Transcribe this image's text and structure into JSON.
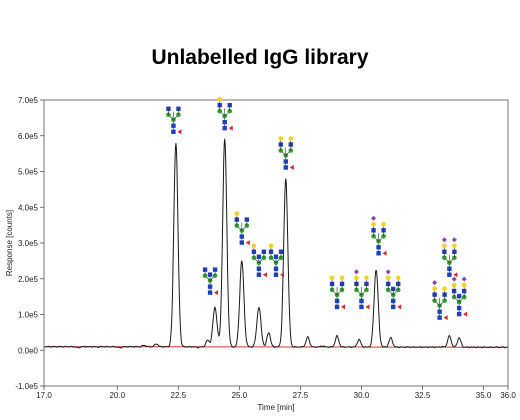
{
  "colors": {
    "trace": "#1a1a1a",
    "baseline": "#e03030",
    "axis": "#555555",
    "glycan_hexnac": "#1f3fbf",
    "glycan_mannose": "#2e9e2e",
    "glycan_galactose": "#f2d21b",
    "glycan_fucose": "#d62728",
    "glycan_sialic": "#8e44ad"
  },
  "chart_data": {
    "type": "line",
    "title": "Unlabelled IgG library",
    "xlabel": "Time [min]",
    "ylabel": "Response [counts]",
    "xlim": [
      17.0,
      36.0
    ],
    "ylim": [
      -100000,
      700000
    ],
    "x_ticks": [
      17.0,
      20.0,
      22.5,
      25.0,
      27.5,
      30.0,
      32.5,
      35.0,
      36.0
    ],
    "x_tick_labels": [
      "17.0",
      "20.0",
      "22.5",
      "25.0",
      "27.5",
      "30.0",
      "32.5",
      "35.0",
      "36.0"
    ],
    "y_ticks": [
      -100000,
      0,
      100000,
      200000,
      300000,
      400000,
      500000,
      600000,
      700000
    ],
    "y_tick_labels": [
      "-1.0e5",
      "0.0e0",
      "1.0e5",
      "2.0e5",
      "3.0e5",
      "4.0e5",
      "5.0e5",
      "6.0e5",
      "7.0e5"
    ],
    "baseline_level": 10000,
    "peaks": [
      {
        "x": 18.4,
        "y": 7000
      },
      {
        "x": 19.2,
        "y": 9000
      },
      {
        "x": 20.1,
        "y": 7000
      },
      {
        "x": 20.6,
        "y": 10000
      },
      {
        "x": 21.1,
        "y": 14000
      },
      {
        "x": 21.6,
        "y": 18000
      },
      {
        "x": 22.4,
        "y": 580000
      },
      {
        "x": 23.3,
        "y": 8000
      },
      {
        "x": 23.7,
        "y": 28000
      },
      {
        "x": 24.0,
        "y": 120000
      },
      {
        "x": 24.4,
        "y": 590000
      },
      {
        "x": 25.1,
        "y": 250000
      },
      {
        "x": 25.8,
        "y": 120000
      },
      {
        "x": 26.2,
        "y": 50000
      },
      {
        "x": 26.9,
        "y": 480000
      },
      {
        "x": 27.8,
        "y": 37000
      },
      {
        "x": 28.4,
        "y": 12000
      },
      {
        "x": 29.0,
        "y": 40000
      },
      {
        "x": 29.9,
        "y": 30000
      },
      {
        "x": 30.6,
        "y": 225000
      },
      {
        "x": 31.2,
        "y": 35000
      },
      {
        "x": 32.0,
        "y": 9000
      },
      {
        "x": 33.3,
        "y": 10000
      },
      {
        "x": 33.6,
        "y": 40000
      },
      {
        "x": 34.0,
        "y": 35000
      }
    ],
    "glycan_markers": [
      {
        "x": 22.3,
        "y": 600000,
        "type": "G0F"
      },
      {
        "x": 23.8,
        "y": 150000,
        "type": "G0F-bisect"
      },
      {
        "x": 24.4,
        "y": 610000,
        "type": "G1F"
      },
      {
        "x": 25.1,
        "y": 290000,
        "type": "G1F-alt"
      },
      {
        "x": 25.8,
        "y": 200000,
        "type": "G1F-bisect"
      },
      {
        "x": 26.5,
        "y": 200000,
        "type": "G1F-bisect"
      },
      {
        "x": 26.9,
        "y": 500000,
        "type": "G2F"
      },
      {
        "x": 29.0,
        "y": 110000,
        "type": "G2F"
      },
      {
        "x": 30.0,
        "y": 110000,
        "type": "G2F-sia"
      },
      {
        "x": 30.7,
        "y": 260000,
        "type": "G2FS1"
      },
      {
        "x": 31.3,
        "y": 110000,
        "type": "G2FS1-bisect"
      },
      {
        "x": 33.2,
        "y": 80000,
        "type": "G2FS1"
      },
      {
        "x": 33.6,
        "y": 200000,
        "type": "G2FS2"
      },
      {
        "x": 34.0,
        "y": 90000,
        "type": "G2FS2-bisect"
      }
    ]
  }
}
